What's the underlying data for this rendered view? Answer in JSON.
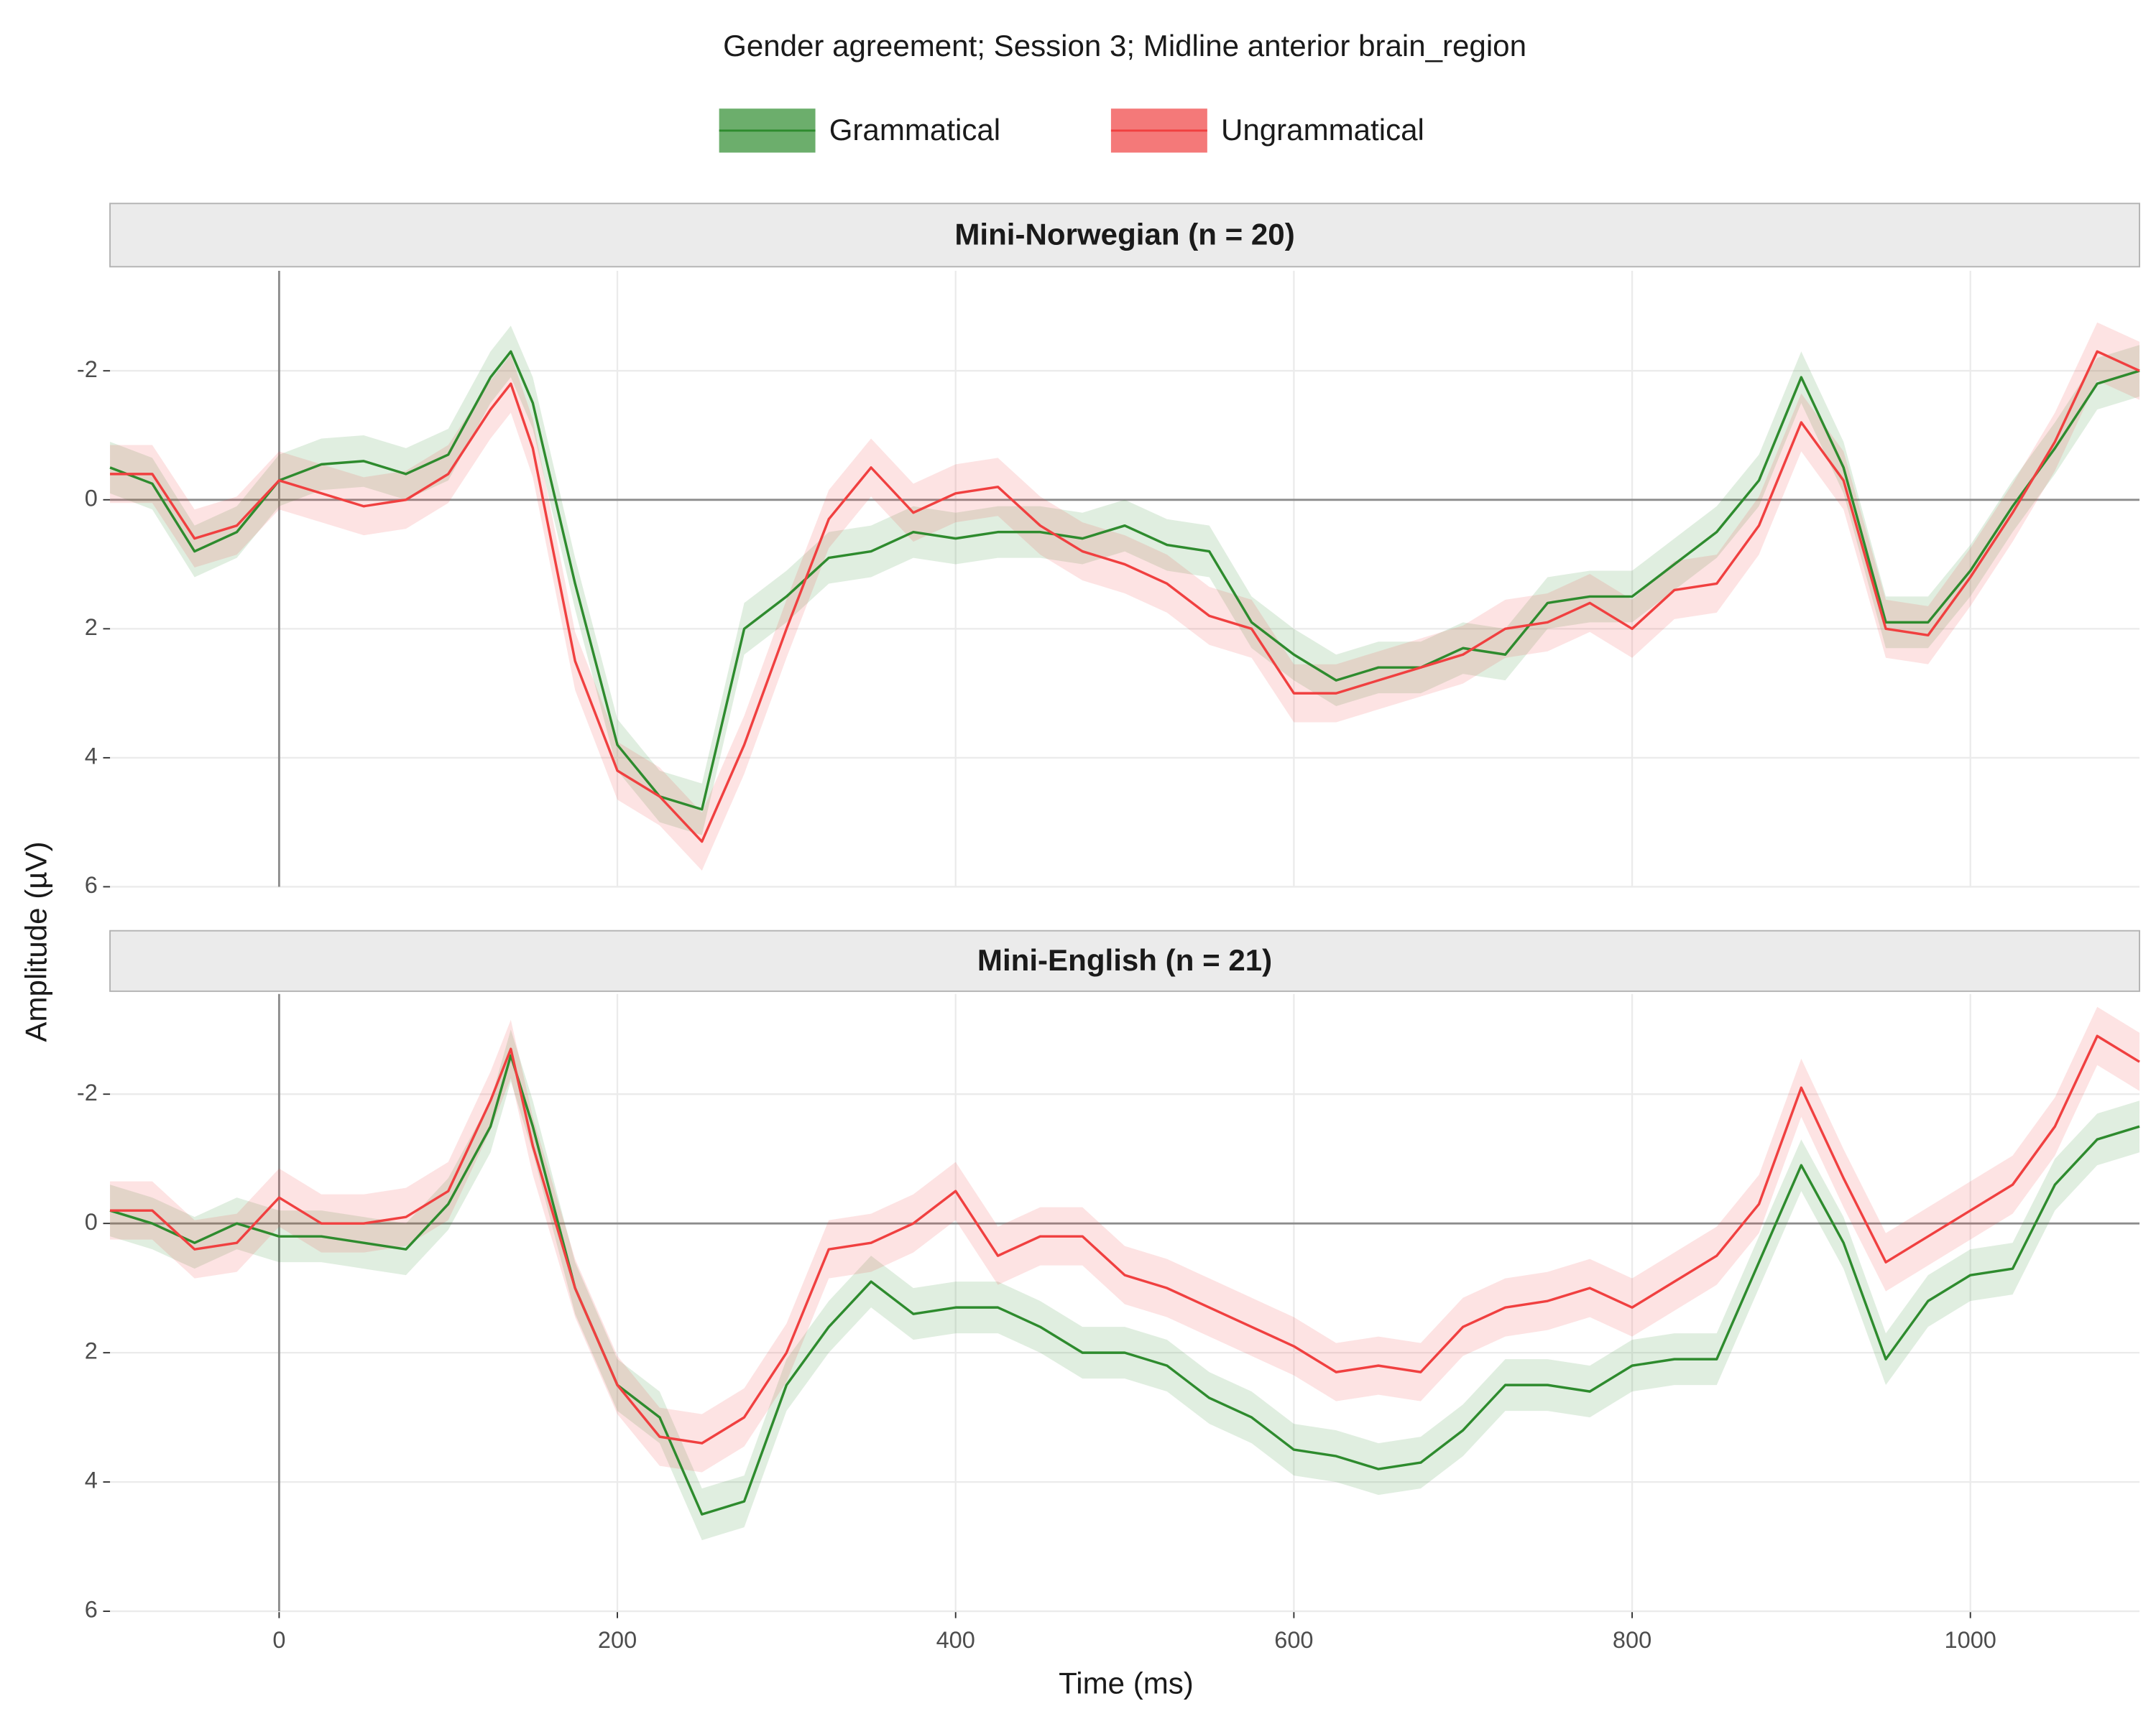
{
  "title": "Gender agreement; Session 3; Midline anterior brain_region",
  "x_label": "Time (ms)",
  "y_label": "Amplitude (µV)",
  "chart_data": [
    {
      "type": "line",
      "title": "Mini-Norwegian (n = 20)",
      "x": [
        -100,
        -75,
        -50,
        -25,
        0,
        25,
        50,
        75,
        100,
        125,
        137,
        150,
        175,
        200,
        225,
        250,
        275,
        300,
        325,
        350,
        375,
        400,
        425,
        450,
        475,
        500,
        525,
        550,
        575,
        600,
        625,
        650,
        675,
        700,
        725,
        750,
        775,
        800,
        825,
        850,
        875,
        900,
        925,
        950,
        975,
        1000,
        1025,
        1050,
        1075,
        1100
      ],
      "series": [
        {
          "name": "Grammatical",
          "color": "#2e8b2e",
          "ci": 0.4,
          "values": [
            -0.5,
            -0.25,
            0.8,
            0.5,
            -0.3,
            -0.55,
            -0.6,
            -0.4,
            -0.7,
            -1.9,
            -2.3,
            -1.5,
            1.3,
            3.8,
            4.6,
            4.8,
            2.0,
            1.5,
            0.9,
            0.8,
            0.5,
            0.6,
            0.5,
            0.5,
            0.6,
            0.4,
            0.7,
            0.8,
            1.9,
            2.4,
            2.8,
            2.6,
            2.6,
            2.3,
            2.4,
            1.6,
            1.5,
            1.5,
            1.0,
            0.5,
            -0.3,
            -1.9,
            -0.5,
            1.9,
            1.9,
            1.1,
            0.1,
            -0.8,
            -1.8,
            -2.0
          ]
        },
        {
          "name": "Ungrammatical",
          "color": "#f04040",
          "ci": 0.45,
          "values": [
            -0.4,
            -0.4,
            0.6,
            0.4,
            -0.3,
            -0.1,
            0.1,
            0.0,
            -0.4,
            -1.4,
            -1.8,
            -0.8,
            2.5,
            4.2,
            4.6,
            5.3,
            3.8,
            2.0,
            0.3,
            -0.5,
            0.2,
            -0.1,
            -0.2,
            0.4,
            0.8,
            1.0,
            1.3,
            1.8,
            2.0,
            3.0,
            3.0,
            2.8,
            2.6,
            2.4,
            2.0,
            1.9,
            1.6,
            2.0,
            1.4,
            1.3,
            0.4,
            -1.2,
            -0.3,
            2.0,
            2.1,
            1.2,
            0.2,
            -0.9,
            -2.3,
            -2.0
          ]
        }
      ],
      "xlim": [
        -100,
        1100
      ],
      "xticks": [
        0,
        200,
        400,
        600,
        800,
        1000
      ],
      "xtick_labels": false,
      "ylim": [
        -3.55,
        6
      ],
      "yticks": [
        -2,
        0,
        2,
        4,
        6
      ],
      "y_reversed": true,
      "hline": 0,
      "vline": 0,
      "grid": true
    },
    {
      "type": "line",
      "title": "Mini-English (n = 21)",
      "x": [
        -100,
        -75,
        -50,
        -25,
        0,
        25,
        50,
        75,
        100,
        125,
        137,
        150,
        175,
        200,
        225,
        250,
        275,
        300,
        325,
        350,
        375,
        400,
        425,
        450,
        475,
        500,
        525,
        550,
        575,
        600,
        625,
        650,
        675,
        700,
        725,
        750,
        775,
        800,
        825,
        850,
        875,
        900,
        925,
        950,
        975,
        1000,
        1025,
        1050,
        1075,
        1100
      ],
      "series": [
        {
          "name": "Grammatical",
          "color": "#2e8b2e",
          "ci": 0.4,
          "values": [
            -0.2,
            0.0,
            0.3,
            0.0,
            0.2,
            0.2,
            0.3,
            0.4,
            -0.3,
            -1.5,
            -2.6,
            -1.5,
            1.0,
            2.5,
            3.0,
            4.5,
            4.3,
            2.5,
            1.6,
            0.9,
            1.4,
            1.3,
            1.3,
            1.6,
            2.0,
            2.0,
            2.2,
            2.7,
            3.0,
            3.5,
            3.6,
            3.8,
            3.7,
            3.2,
            2.5,
            2.5,
            2.6,
            2.2,
            2.1,
            2.1,
            0.6,
            -0.9,
            0.3,
            2.1,
            1.2,
            0.8,
            0.7,
            -0.6,
            -1.3,
            -1.5
          ]
        },
        {
          "name": "Ungrammatical",
          "color": "#f04040",
          "ci": 0.45,
          "values": [
            -0.2,
            -0.2,
            0.4,
            0.3,
            -0.4,
            0.0,
            0.0,
            -0.1,
            -0.5,
            -1.9,
            -2.7,
            -1.2,
            1.0,
            2.5,
            3.3,
            3.4,
            3.0,
            2.0,
            0.4,
            0.3,
            0.0,
            -0.5,
            0.5,
            0.2,
            0.2,
            0.8,
            1.0,
            1.3,
            1.6,
            1.9,
            2.3,
            2.2,
            2.3,
            1.6,
            1.3,
            1.2,
            1.0,
            1.3,
            0.9,
            0.5,
            -0.3,
            -2.1,
            -0.7,
            0.6,
            0.2,
            -0.2,
            -0.6,
            -1.5,
            -2.9,
            -2.5
          ]
        }
      ],
      "xlim": [
        -100,
        1100
      ],
      "xticks": [
        0,
        200,
        400,
        600,
        800,
        1000
      ],
      "xtick_labels": true,
      "ylim": [
        -3.55,
        6
      ],
      "yticks": [
        -2,
        0,
        2,
        4,
        6
      ],
      "y_reversed": true,
      "hline": 0,
      "vline": 0,
      "grid": true
    }
  ]
}
